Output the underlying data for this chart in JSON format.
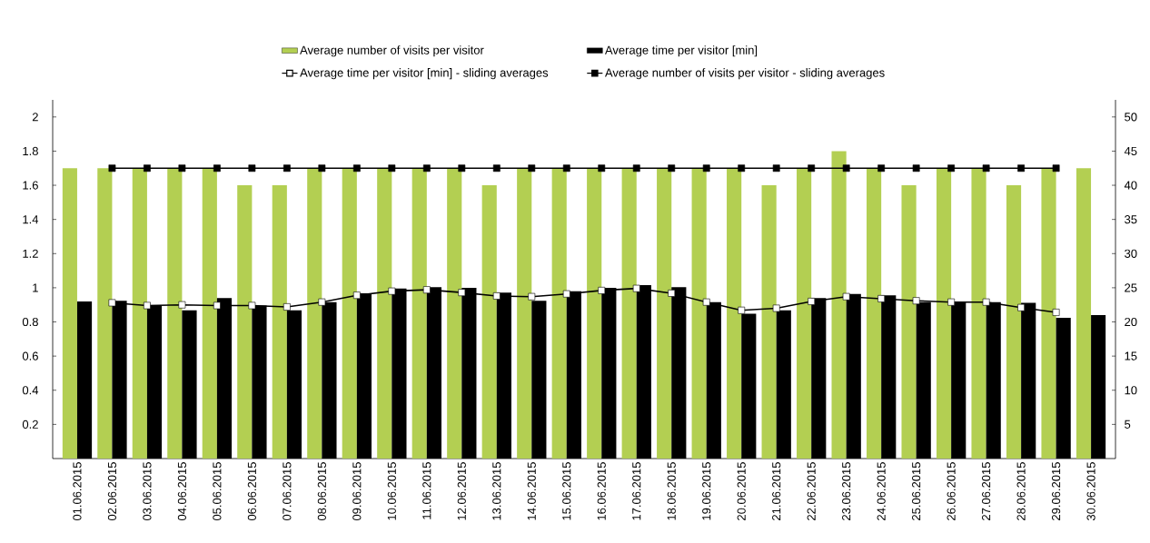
{
  "chart_data": {
    "type": "bar",
    "categories": [
      "01.06.2015",
      "02.06.2015",
      "03.06.2015",
      "04.06.2015",
      "05.06.2015",
      "06.06.2015",
      "07.06.2015",
      "08.06.2015",
      "09.06.2015",
      "10.06.2015",
      "11.06.2015",
      "12.06.2015",
      "13.06.2015",
      "14.06.2015",
      "15.06.2015",
      "16.06.2015",
      "17.06.2015",
      "18.06.2015",
      "19.06.2015",
      "20.06.2015",
      "21.06.2015",
      "22.06.2015",
      "23.06.2015",
      "24.06.2015",
      "25.06.2015",
      "26.06.2015",
      "27.06.2015",
      "28.06.2015",
      "29.06.2015",
      "30.06.2015"
    ],
    "series": [
      {
        "name": "Average number of visits per visitor",
        "color": "#b3cf52",
        "values": [
          1.7,
          1.7,
          1.7,
          1.7,
          1.7,
          1.6,
          1.6,
          1.7,
          1.7,
          1.7,
          1.7,
          1.7,
          1.6,
          1.7,
          1.7,
          1.7,
          1.7,
          1.7,
          1.7,
          1.7,
          1.6,
          1.7,
          1.8,
          1.7,
          1.6,
          1.7,
          1.7,
          1.6,
          1.7,
          1.7
        ]
      },
      {
        "name": "Average time per visitor [min]",
        "axis": "y2",
        "color": "#000000",
        "values": [
          23.0,
          23.1,
          22.4,
          21.7,
          23.5,
          22.4,
          21.7,
          22.9,
          24.2,
          24.9,
          25.1,
          25.0,
          24.3,
          23.1,
          24.5,
          25.0,
          25.4,
          25.1,
          22.9,
          21.2,
          21.7,
          23.5,
          24.1,
          23.9,
          22.9,
          23.0,
          22.9,
          22.8,
          20.6,
          21.0
        ]
      },
      {
        "name": "Average time per visitor [min] - sliding averages",
        "type": "line",
        "axis": "y2",
        "color": "#000000",
        "values": [
          null,
          22.8,
          22.4,
          22.5,
          22.4,
          22.4,
          22.2,
          22.9,
          23.9,
          24.5,
          24.7,
          24.3,
          23.8,
          23.7,
          24.1,
          24.6,
          24.9,
          24.2,
          22.9,
          21.7,
          22.0,
          23.0,
          23.7,
          23.4,
          23.1,
          22.9,
          22.9,
          22.1,
          21.4,
          null
        ]
      },
      {
        "name": "Average number of visits per visitor - sliding averages",
        "type": "line",
        "color": "#000000",
        "values": [
          null,
          1.7,
          1.7,
          1.7,
          1.7,
          1.7,
          1.7,
          1.7,
          1.7,
          1.7,
          1.7,
          1.7,
          1.7,
          1.7,
          1.7,
          1.7,
          1.7,
          1.7,
          1.7,
          1.7,
          1.7,
          1.7,
          1.7,
          1.7,
          1.7,
          1.7,
          1.7,
          1.7,
          1.7,
          null
        ]
      }
    ],
    "ylim": [
      0,
      2.1
    ],
    "yticks": [
      0.2,
      0.4,
      0.6,
      0.8,
      1,
      1.2,
      1.4,
      1.6,
      1.8,
      2
    ],
    "y2lim": [
      0,
      52.5
    ],
    "y2ticks": [
      5,
      10,
      15,
      20,
      25,
      30,
      35,
      40,
      45,
      50
    ],
    "marker": "square",
    "line_style": "solid",
    "grid": false,
    "legend": "top"
  }
}
